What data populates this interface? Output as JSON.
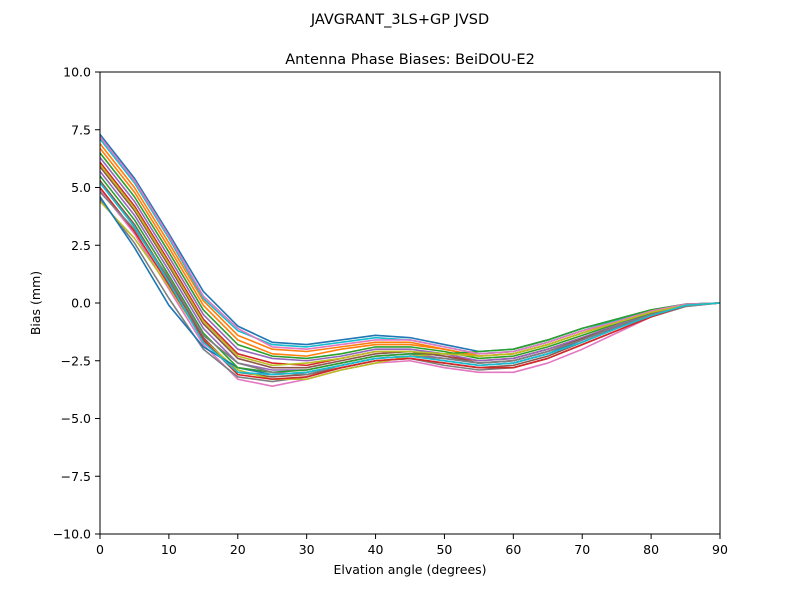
{
  "chart_data": {
    "type": "line",
    "suptitle": "JAVGRANT_3LS+GP JVSD",
    "title": "Antenna Phase Biases: BeiDOU-E2",
    "xlabel": "Elvation angle (degrees)",
    "ylabel": "Bias (mm)",
    "xlim": [
      0,
      90
    ],
    "ylim": [
      -10,
      10
    ],
    "xticks": [
      0,
      10,
      20,
      30,
      40,
      50,
      60,
      70,
      80,
      90
    ],
    "yticks": [
      -10,
      -7.5,
      -5,
      -2.5,
      0,
      2.5,
      5,
      7.5,
      10
    ],
    "xtick_labels": [
      "0",
      "10",
      "20",
      "30",
      "40",
      "50",
      "60",
      "70",
      "80",
      "90"
    ],
    "ytick_labels": [
      "−10.0",
      "−7.5",
      "−5.0",
      "−2.5",
      "0.0",
      "2.5",
      "5.0",
      "7.5",
      "10.0"
    ],
    "grid": false,
    "legend": "none",
    "x": [
      0,
      5,
      10,
      15,
      20,
      25,
      30,
      35,
      40,
      45,
      50,
      55,
      60,
      65,
      70,
      75,
      80,
      85,
      90
    ],
    "series": [
      {
        "color": "#1f77b4",
        "values": [
          7.3,
          5.4,
          3.0,
          0.5,
          -1.0,
          -1.7,
          -1.8,
          -1.6,
          -1.4,
          -1.5,
          -1.8,
          -2.1,
          -2.0,
          -1.6,
          -1.1,
          -0.7,
          -0.3,
          -0.05,
          0.0
        ]
      },
      {
        "color": "#ff7f0e",
        "values": [
          6.9,
          5.0,
          2.6,
          0.1,
          -1.4,
          -2.0,
          -2.1,
          -1.9,
          -1.7,
          -1.7,
          -2.0,
          -2.3,
          -2.2,
          -1.8,
          -1.3,
          -0.8,
          -0.4,
          -0.1,
          0.0
        ]
      },
      {
        "color": "#2ca02c",
        "values": [
          6.5,
          4.6,
          2.2,
          -0.3,
          -1.8,
          -2.3,
          -2.4,
          -2.2,
          -1.9,
          -1.9,
          -2.1,
          -2.4,
          -2.3,
          -1.9,
          -1.4,
          -0.9,
          -0.45,
          -0.1,
          0.0
        ]
      },
      {
        "color": "#d62728",
        "values": [
          6.1,
          4.2,
          1.8,
          -0.7,
          -2.2,
          -2.6,
          -2.7,
          -2.4,
          -2.1,
          -2.1,
          -2.3,
          -2.5,
          -2.4,
          -2.0,
          -1.5,
          -1.0,
          -0.5,
          -0.1,
          0.0
        ]
      },
      {
        "color": "#9467bd",
        "values": [
          5.7,
          3.8,
          1.4,
          -1.1,
          -2.6,
          -2.9,
          -2.9,
          -2.6,
          -2.3,
          -2.2,
          -2.4,
          -2.6,
          -2.5,
          -2.1,
          -1.6,
          -1.05,
          -0.5,
          -0.1,
          0.0
        ]
      },
      {
        "color": "#8c564b",
        "values": [
          5.3,
          3.4,
          1.0,
          -1.5,
          -3.0,
          -3.2,
          -3.1,
          -2.8,
          -2.5,
          -2.4,
          -2.6,
          -2.8,
          -2.7,
          -2.3,
          -1.7,
          -1.1,
          -0.55,
          -0.1,
          0.0
        ]
      },
      {
        "color": "#e377c2",
        "values": [
          4.9,
          3.0,
          0.6,
          -1.8,
          -3.3,
          -3.6,
          -3.3,
          -2.9,
          -2.6,
          -2.5,
          -2.8,
          -3.0,
          -3.0,
          -2.6,
          -2.0,
          -1.3,
          -0.6,
          -0.15,
          0.0
        ]
      },
      {
        "color": "#7f7f7f",
        "values": [
          4.5,
          2.6,
          0.2,
          -2.0,
          -3.2,
          -3.4,
          -3.2,
          -2.8,
          -2.5,
          -2.4,
          -2.7,
          -2.9,
          -2.8,
          -2.4,
          -1.8,
          -1.2,
          -0.6,
          -0.15,
          0.0
        ]
      },
      {
        "color": "#bcbd22",
        "values": [
          4.4,
          2.8,
          0.7,
          -1.6,
          -2.9,
          -3.3,
          -3.3,
          -2.9,
          -2.6,
          -2.3,
          -2.2,
          -2.2,
          -2.1,
          -1.7,
          -1.2,
          -0.75,
          -0.35,
          -0.05,
          0.0
        ]
      },
      {
        "color": "#17becf",
        "values": [
          7.1,
          5.2,
          2.8,
          0.2,
          -1.2,
          -1.8,
          -1.9,
          -1.7,
          -1.5,
          -1.6,
          -1.9,
          -2.2,
          -2.1,
          -1.7,
          -1.2,
          -0.75,
          -0.35,
          -0.05,
          0.0
        ]
      },
      {
        "color": "#1f77b4",
        "values": [
          4.6,
          2.4,
          -0.1,
          -1.9,
          -2.8,
          -3.1,
          -3.0,
          -2.7,
          -2.4,
          -2.3,
          -2.5,
          -2.7,
          -2.6,
          -2.2,
          -1.6,
          -1.0,
          -0.5,
          -0.1,
          0.0
        ]
      },
      {
        "color": "#ff7f0e",
        "values": [
          6.7,
          4.8,
          2.4,
          -0.1,
          -1.6,
          -2.2,
          -2.3,
          -2.0,
          -1.8,
          -1.8,
          -2.0,
          -2.3,
          -2.2,
          -1.8,
          -1.3,
          -0.85,
          -0.4,
          -0.1,
          0.0
        ]
      },
      {
        "color": "#2ca02c",
        "values": [
          5.5,
          3.6,
          1.2,
          -1.3,
          -2.8,
          -3.0,
          -2.9,
          -2.6,
          -2.3,
          -2.2,
          -2.2,
          -2.1,
          -2.0,
          -1.6,
          -1.1,
          -0.7,
          -0.3,
          -0.05,
          0.0
        ]
      },
      {
        "color": "#d62728",
        "values": [
          5.0,
          3.1,
          0.8,
          -1.6,
          -3.1,
          -3.3,
          -3.2,
          -2.8,
          -2.5,
          -2.4,
          -2.6,
          -2.8,
          -2.8,
          -2.4,
          -1.8,
          -1.2,
          -0.6,
          -0.1,
          0.0
        ]
      },
      {
        "color": "#9467bd",
        "values": [
          6.3,
          4.4,
          2.0,
          -0.5,
          -2.0,
          -2.4,
          -2.5,
          -2.3,
          -2.0,
          -2.0,
          -2.2,
          -2.5,
          -2.4,
          -2.0,
          -1.5,
          -0.95,
          -0.5,
          -0.1,
          0.0
        ]
      },
      {
        "color": "#8c564b",
        "values": [
          5.9,
          4.0,
          1.6,
          -0.9,
          -2.4,
          -2.8,
          -2.8,
          -2.5,
          -2.2,
          -2.1,
          -2.3,
          -2.6,
          -2.5,
          -2.1,
          -1.55,
          -1.0,
          -0.5,
          -0.1,
          0.0
        ]
      },
      {
        "color": "#e377c2",
        "values": [
          7.2,
          5.3,
          2.9,
          0.3,
          -1.1,
          -1.9,
          -2.0,
          -1.8,
          -1.6,
          -1.6,
          -1.9,
          -2.2,
          -2.1,
          -1.7,
          -1.2,
          -0.8,
          -0.35,
          -0.05,
          0.0
        ]
      },
      {
        "color": "#7f7f7f",
        "values": [
          4.8,
          3.2,
          1.1,
          -1.4,
          -2.6,
          -3.0,
          -3.1,
          -2.7,
          -2.4,
          -2.3,
          -2.4,
          -2.6,
          -2.5,
          -2.1,
          -1.6,
          -1.0,
          -0.5,
          -0.1,
          0.0
        ]
      },
      {
        "color": "#bcbd22",
        "values": [
          6.0,
          4.1,
          1.7,
          -0.8,
          -2.3,
          -2.7,
          -2.6,
          -2.4,
          -2.1,
          -2.1,
          -2.2,
          -2.3,
          -2.2,
          -1.8,
          -1.3,
          -0.85,
          -0.4,
          -0.1,
          0.0
        ]
      },
      {
        "color": "#17becf",
        "values": [
          5.2,
          3.3,
          0.9,
          -1.7,
          -3.0,
          -3.1,
          -3.0,
          -2.7,
          -2.4,
          -2.3,
          -2.5,
          -2.7,
          -2.6,
          -2.2,
          -1.7,
          -1.1,
          -0.55,
          -0.1,
          0.0
        ]
      }
    ]
  }
}
